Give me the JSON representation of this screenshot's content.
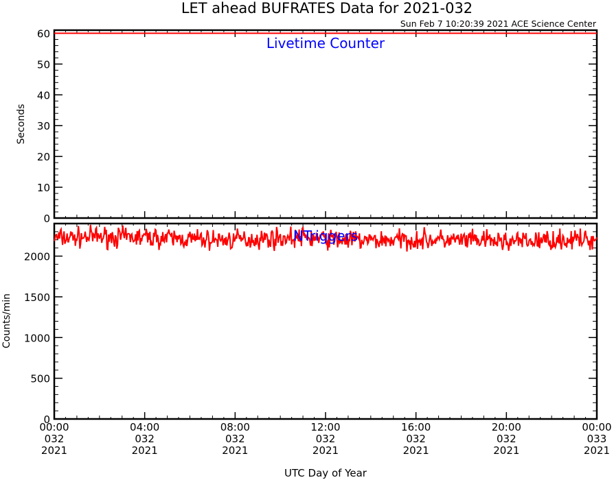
{
  "title": "LET ahead BUFRATES Data for 2021-032",
  "timestamp": "Sun Feb  7 10:20:39 2021 ACE Science Center",
  "xlabel": "UTC Day of Year",
  "x_ticks": [
    {
      "hours": 0,
      "time": "00:00",
      "doy": "032",
      "year": "2021"
    },
    {
      "hours": 4,
      "time": "04:00",
      "doy": "032",
      "year": "2021"
    },
    {
      "hours": 8,
      "time": "08:00",
      "doy": "032",
      "year": "2021"
    },
    {
      "hours": 12,
      "time": "12:00",
      "doy": "032",
      "year": "2021"
    },
    {
      "hours": 16,
      "time": "16:00",
      "doy": "032",
      "year": "2021"
    },
    {
      "hours": 20,
      "time": "20:00",
      "doy": "032",
      "year": "2021"
    },
    {
      "hours": 24,
      "time": "00:00",
      "doy": "033",
      "year": "2021"
    }
  ],
  "colors": {
    "series": "#ff0000",
    "panel_label": "#0000ff",
    "axes": "#000000"
  },
  "chart_data": [
    {
      "type": "line",
      "panel_label": "Livetime Counter",
      "ylabel": "Seconds",
      "xlim_hours": [
        0,
        24
      ],
      "ylim": [
        0,
        61
      ],
      "yticks": [
        0,
        10,
        20,
        30,
        40,
        50,
        60
      ],
      "series": [
        {
          "x_hours": [
            0,
            24
          ],
          "values": [
            60,
            60
          ]
        }
      ]
    },
    {
      "type": "line",
      "panel_label": "NTriggers",
      "ylabel": "Counts/min",
      "xlim_hours": [
        0,
        24
      ],
      "ylim": [
        0,
        2400
      ],
      "yticks": [
        0,
        500,
        1000,
        1500,
        2000
      ],
      "series": [
        {
          "x_hours": [
            0,
            1,
            2,
            3,
            4,
            5,
            6,
            7,
            8,
            9,
            10,
            11,
            12,
            13,
            14,
            15,
            16,
            17,
            18,
            19,
            20,
            21,
            22,
            23,
            24
          ],
          "values": [
            2220,
            2230,
            2240,
            2230,
            2230,
            2220,
            2210,
            2200,
            2200,
            2210,
            2220,
            2230,
            2210,
            2200,
            2190,
            2200,
            2200,
            2200,
            2190,
            2190,
            2180,
            2180,
            2200,
            2200,
            2200
          ],
          "noise_min": 2000,
          "noise_max": 2400
        }
      ]
    }
  ]
}
